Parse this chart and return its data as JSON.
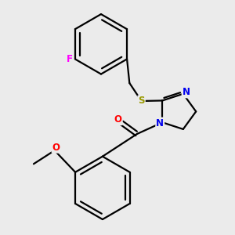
{
  "background_color": "#ebebeb",
  "bond_color": "#000000",
  "atom_colors": {
    "F": "#ff00ff",
    "S": "#999900",
    "N": "#0000ee",
    "O": "#ff0000",
    "C": "#000000"
  },
  "line_width": 1.6,
  "font_size": 8.5,
  "figsize": [
    3.0,
    3.0
  ],
  "dpi": 100
}
